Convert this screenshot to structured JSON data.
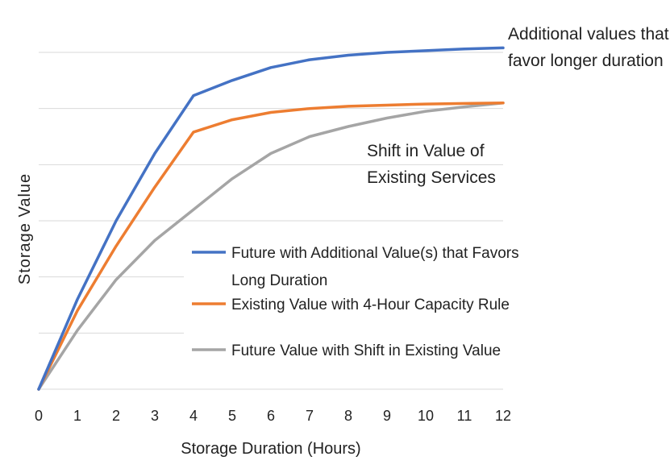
{
  "chart_data": {
    "type": "line",
    "title": "",
    "xlabel": "Storage Duration (Hours)",
    "ylabel": "Storage Value",
    "x": [
      0,
      1,
      2,
      3,
      4,
      5,
      6,
      7,
      8,
      9,
      10,
      11,
      12
    ],
    "xlim": [
      0,
      12
    ],
    "ylim": [
      0,
      6
    ],
    "grid": true,
    "series": [
      {
        "name": "Future with Additional Value(s) that Favors Long Duration",
        "color": "#4472C4",
        "values": [
          0,
          1.6,
          3.0,
          4.2,
          5.23,
          5.5,
          5.73,
          5.87,
          5.95,
          6.0,
          6.03,
          6.06,
          6.08
        ]
      },
      {
        "name": "Existing Value with 4-Hour Capacity Rule",
        "color": "#ED7D31",
        "values": [
          0,
          1.4,
          2.55,
          3.6,
          4.58,
          4.8,
          4.93,
          5.0,
          5.04,
          5.06,
          5.08,
          5.09,
          5.1
        ]
      },
      {
        "name": "Future Value with Shift in Existing Value",
        "color": "#A5A5A5",
        "values": [
          0,
          1.05,
          1.95,
          2.65,
          3.2,
          3.75,
          4.2,
          4.5,
          4.68,
          4.83,
          4.95,
          5.03,
          5.1
        ]
      }
    ],
    "legend": {
      "placement": "center-right",
      "lines": [
        [
          "Future with Additional Value(s) that Favors",
          "Long Duration"
        ],
        [
          "Existing Value with 4-Hour Capacity Rule"
        ],
        [
          "Future Value with Shift in Existing Value"
        ]
      ]
    },
    "annotations": [
      {
        "id": "additional",
        "lines": [
          "Additional values that",
          "favor longer duration"
        ]
      },
      {
        "id": "shift",
        "lines": [
          "Shift in Value of",
          "Existing Services"
        ]
      }
    ]
  }
}
